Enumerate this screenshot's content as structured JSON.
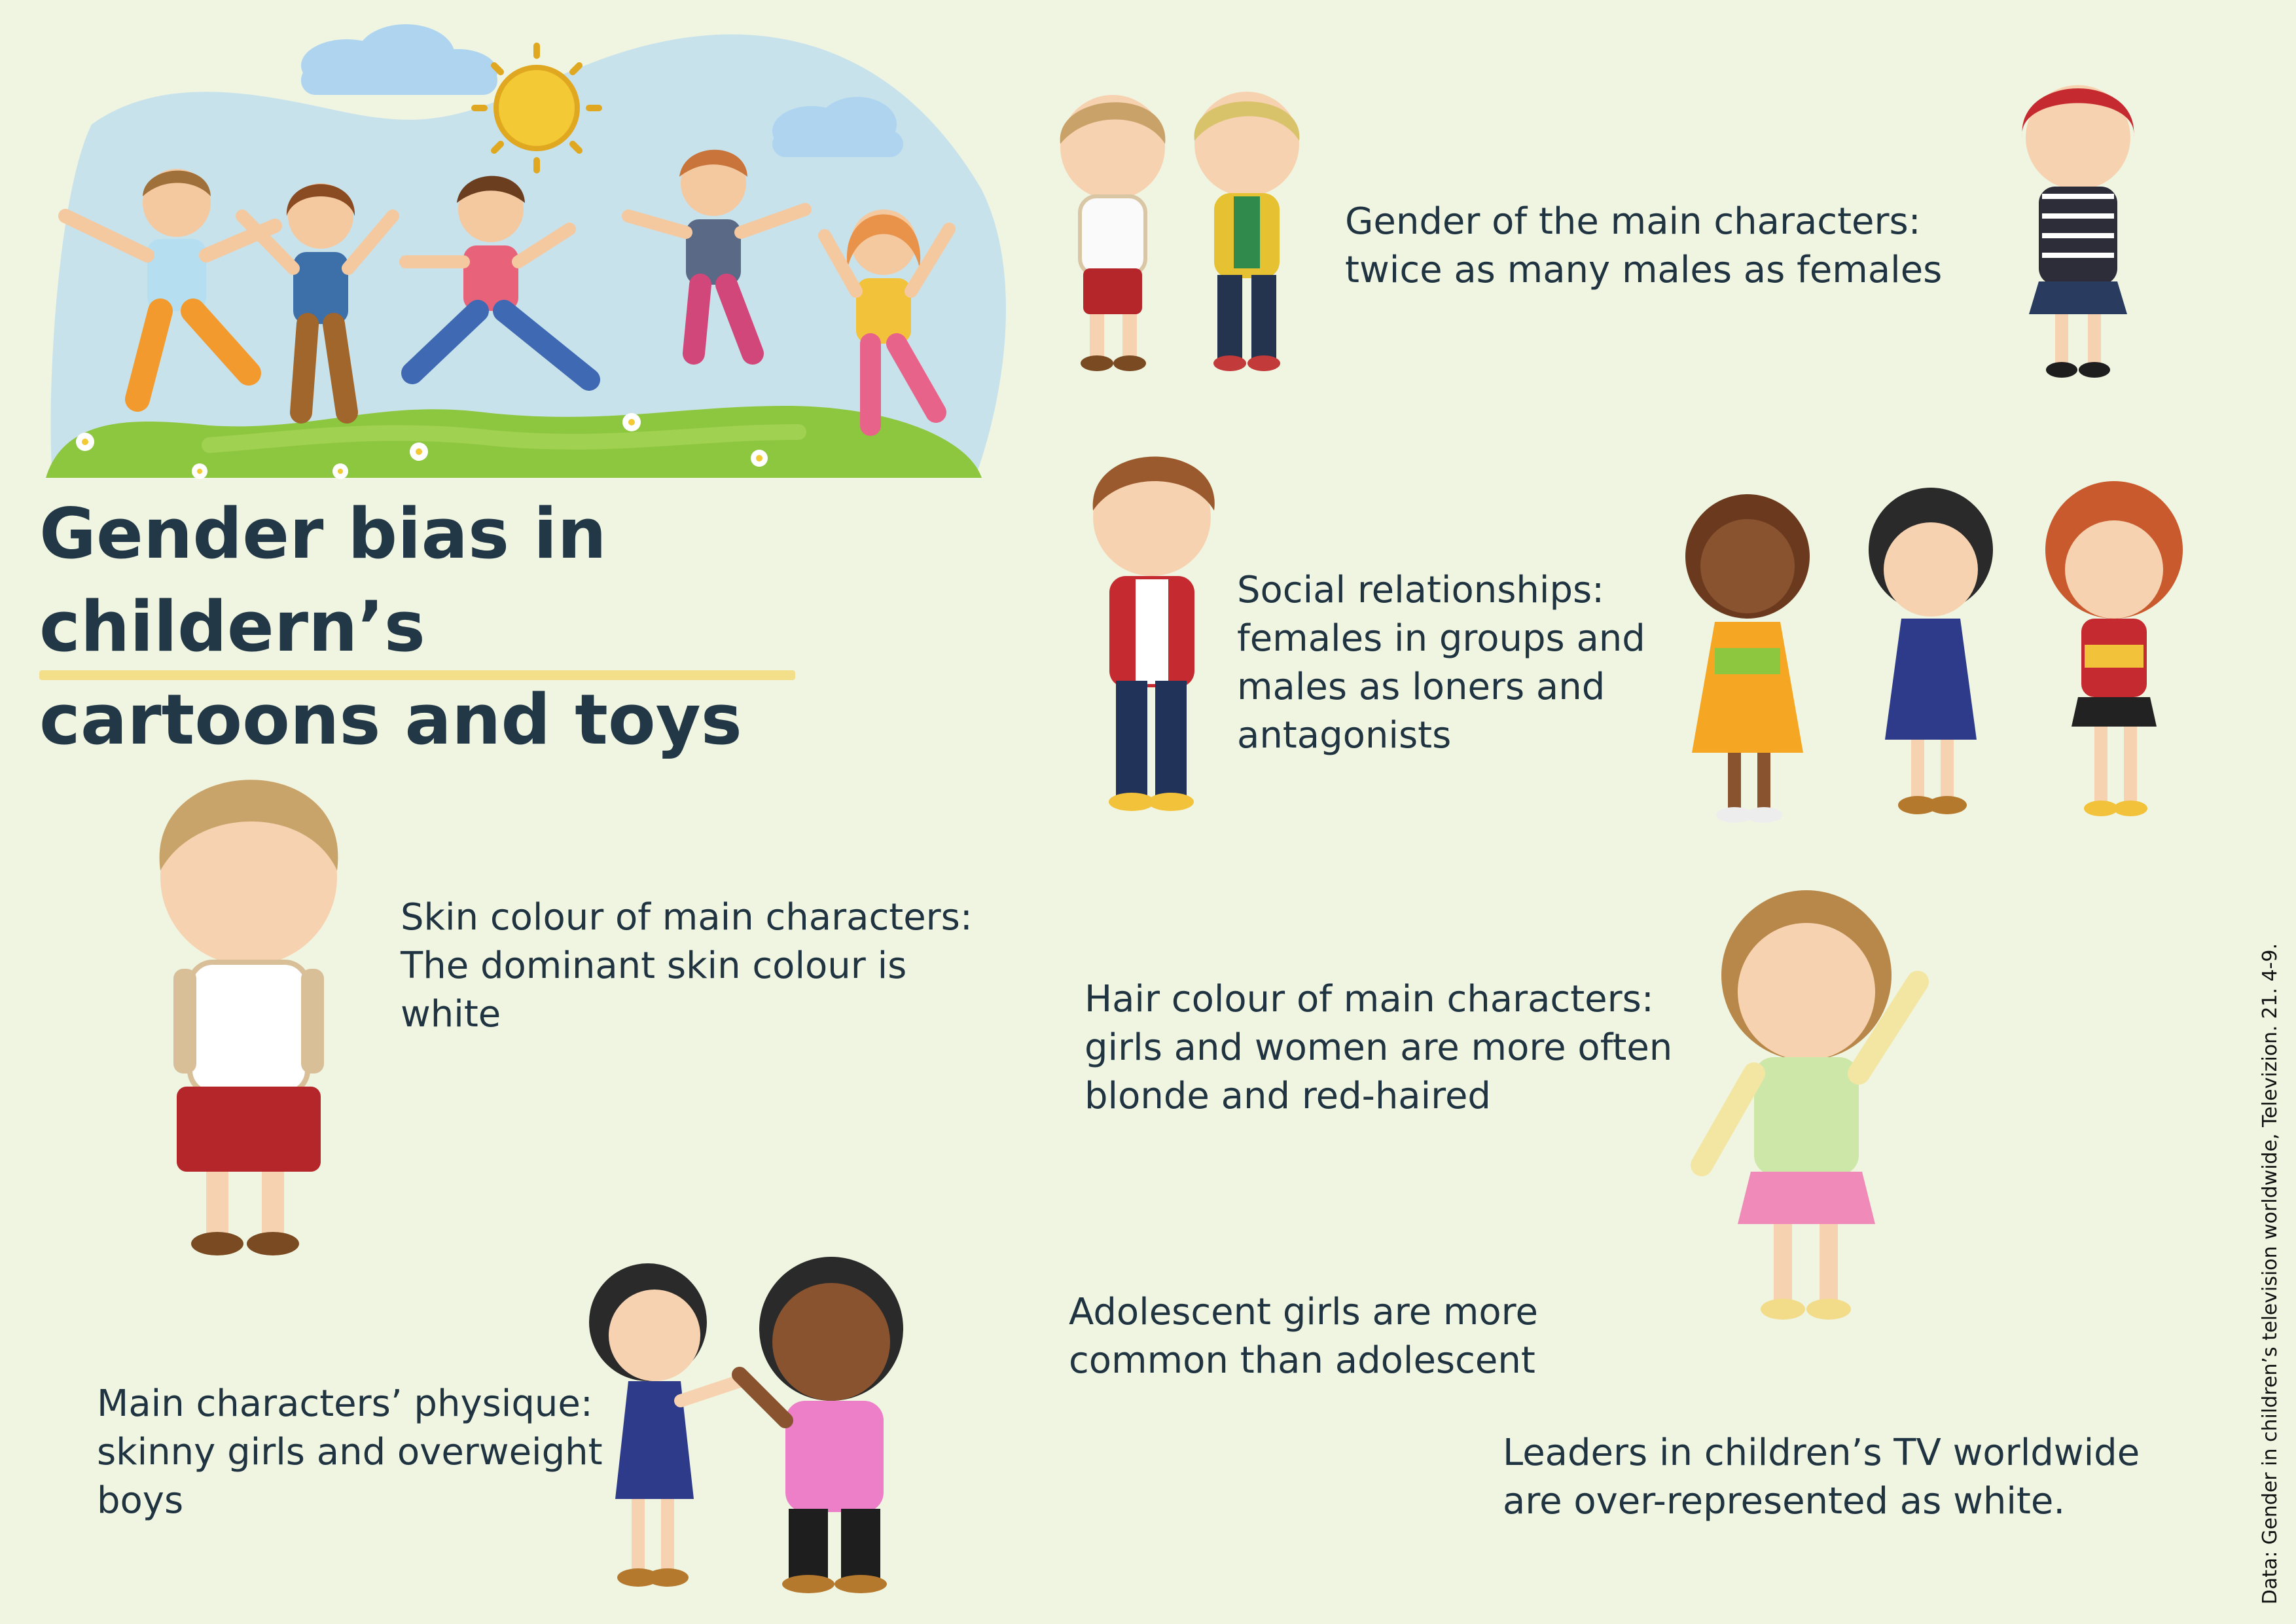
{
  "title": {
    "line1": "Gender bias in childern’s",
    "line2": "cartoons and toys"
  },
  "facts": {
    "main_characters": {
      "line1": "Gender of the main characters:",
      "line2": "twice as many males as females"
    },
    "social": {
      "line1": "Social relationships:",
      "line2": "females in groups and",
      "line3": "males as loners and",
      "line4": "antagonists"
    },
    "skin": {
      "line1": "Skin colour of main characters:",
      "line2": "The dominant skin colour is",
      "line3": "white"
    },
    "hair": {
      "line1": "Hair colour of main characters:",
      "line2": "girls and women are more often",
      "line3": "blonde and red-haired"
    },
    "adolescent": {
      "line1": "Adolescent girls are more",
      "line2": "common than adolescent"
    },
    "physique": {
      "line1": "Main characters’ physique:",
      "line2": "skinny girls and overweight",
      "line3": "boys"
    },
    "leaders": {
      "line1": "Leaders in children’s TV worldwide",
      "line2": "are  over-represented as white."
    }
  },
  "source": "Data: Gender in children’s television worldwide, Televizion. 21. 4-9.",
  "colors": {
    "background": "#f0f5e2",
    "title_text": "#233847",
    "underline": "#f3df8a",
    "body_text": "#1f3340"
  },
  "icons": [
    "cloud-icon",
    "sun-icon",
    "hill-icon",
    "flower-icon",
    "child-figure-icon"
  ]
}
